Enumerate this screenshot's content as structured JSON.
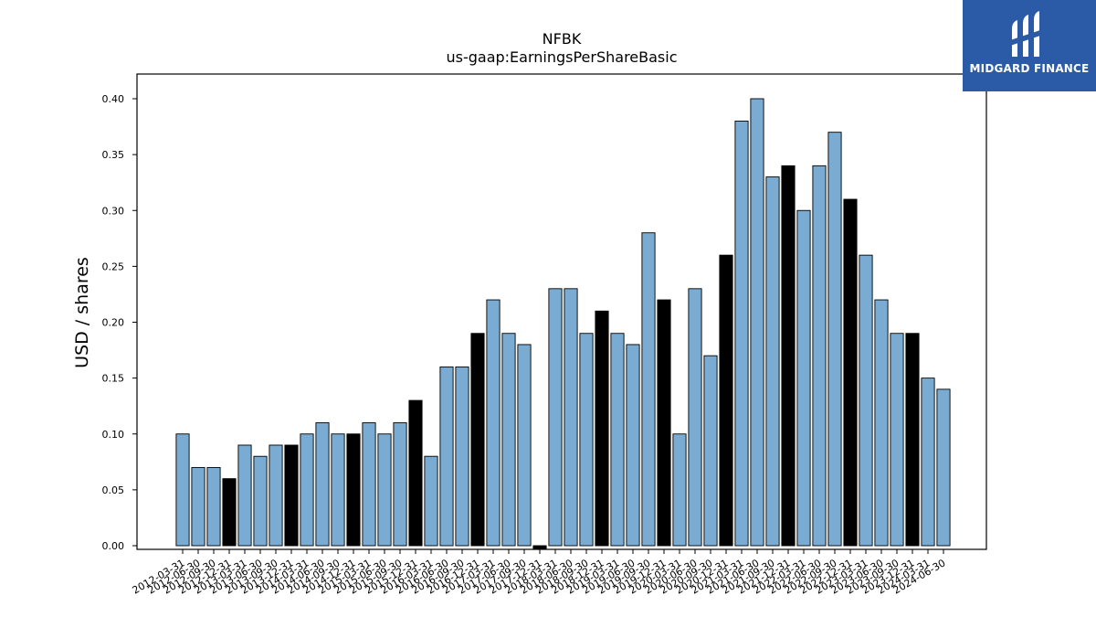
{
  "chart_data": {
    "type": "bar",
    "title": "NFBK",
    "subtitle": "us-gaap:EarningsPerShareBasic",
    "xlabel": "",
    "ylabel": "USD / shares",
    "ylim": [
      0,
      0.42
    ],
    "yticks": [
      "0.00",
      "0.05",
      "0.10",
      "0.15",
      "0.20",
      "0.25",
      "0.30",
      "0.35",
      "0.40"
    ],
    "categories": [
      "2012-03-31",
      "2012-06-30",
      "2012-09-30",
      "2012-12-31",
      "2013-03-31",
      "2013-06-30",
      "2013-09-30",
      "2013-12-31",
      "2014-03-31",
      "2014-06-30",
      "2014-09-30",
      "2014-12-31",
      "2015-03-31",
      "2015-06-30",
      "2015-09-30",
      "2015-12-31",
      "2016-03-31",
      "2016-06-30",
      "2016-09-30",
      "2016-12-31",
      "2017-03-31",
      "2017-06-30",
      "2017-09-30",
      "2017-12-31",
      "2018-03-31",
      "2018-06-30",
      "2018-09-30",
      "2018-12-31",
      "2019-03-31",
      "2019-06-30",
      "2019-09-30",
      "2019-12-31",
      "2020-03-31",
      "2020-06-30",
      "2020-09-30",
      "2020-12-31",
      "2021-03-31",
      "2021-06-30",
      "2021-09-30",
      "2021-12-31",
      "2022-03-31",
      "2022-06-30",
      "2022-09-30",
      "2022-12-31",
      "2023-03-31",
      "2023-06-30",
      "2023-09-30",
      "2023-12-31",
      "2024-03-31",
      "2024-06-30"
    ],
    "values": [
      0.1,
      0.07,
      0.07,
      0.06,
      0.09,
      0.08,
      0.09,
      0.09,
      0.1,
      0.11,
      0.1,
      0.1,
      0.11,
      0.1,
      0.11,
      0.13,
      0.08,
      0.16,
      0.16,
      0.19,
      0.22,
      0.19,
      0.18,
      -0.003,
      0.23,
      0.23,
      0.19,
      0.21,
      0.19,
      0.18,
      0.28,
      0.22,
      0.1,
      0.23,
      0.17,
      0.26,
      0.38,
      0.4,
      0.33,
      0.34,
      0.3,
      0.34,
      0.37,
      0.31,
      0.26,
      0.22,
      0.19,
      0.19,
      0.15,
      0.14
    ],
    "highlight_color": "#000000",
    "bar_color": "#7aabd2",
    "highlighted_indices": [
      3,
      7,
      11,
      15,
      19,
      23,
      27,
      31,
      35,
      39,
      43,
      47
    ]
  },
  "logo": {
    "text": "MIDGARD FINANCE",
    "background": "#2b5aa6"
  }
}
